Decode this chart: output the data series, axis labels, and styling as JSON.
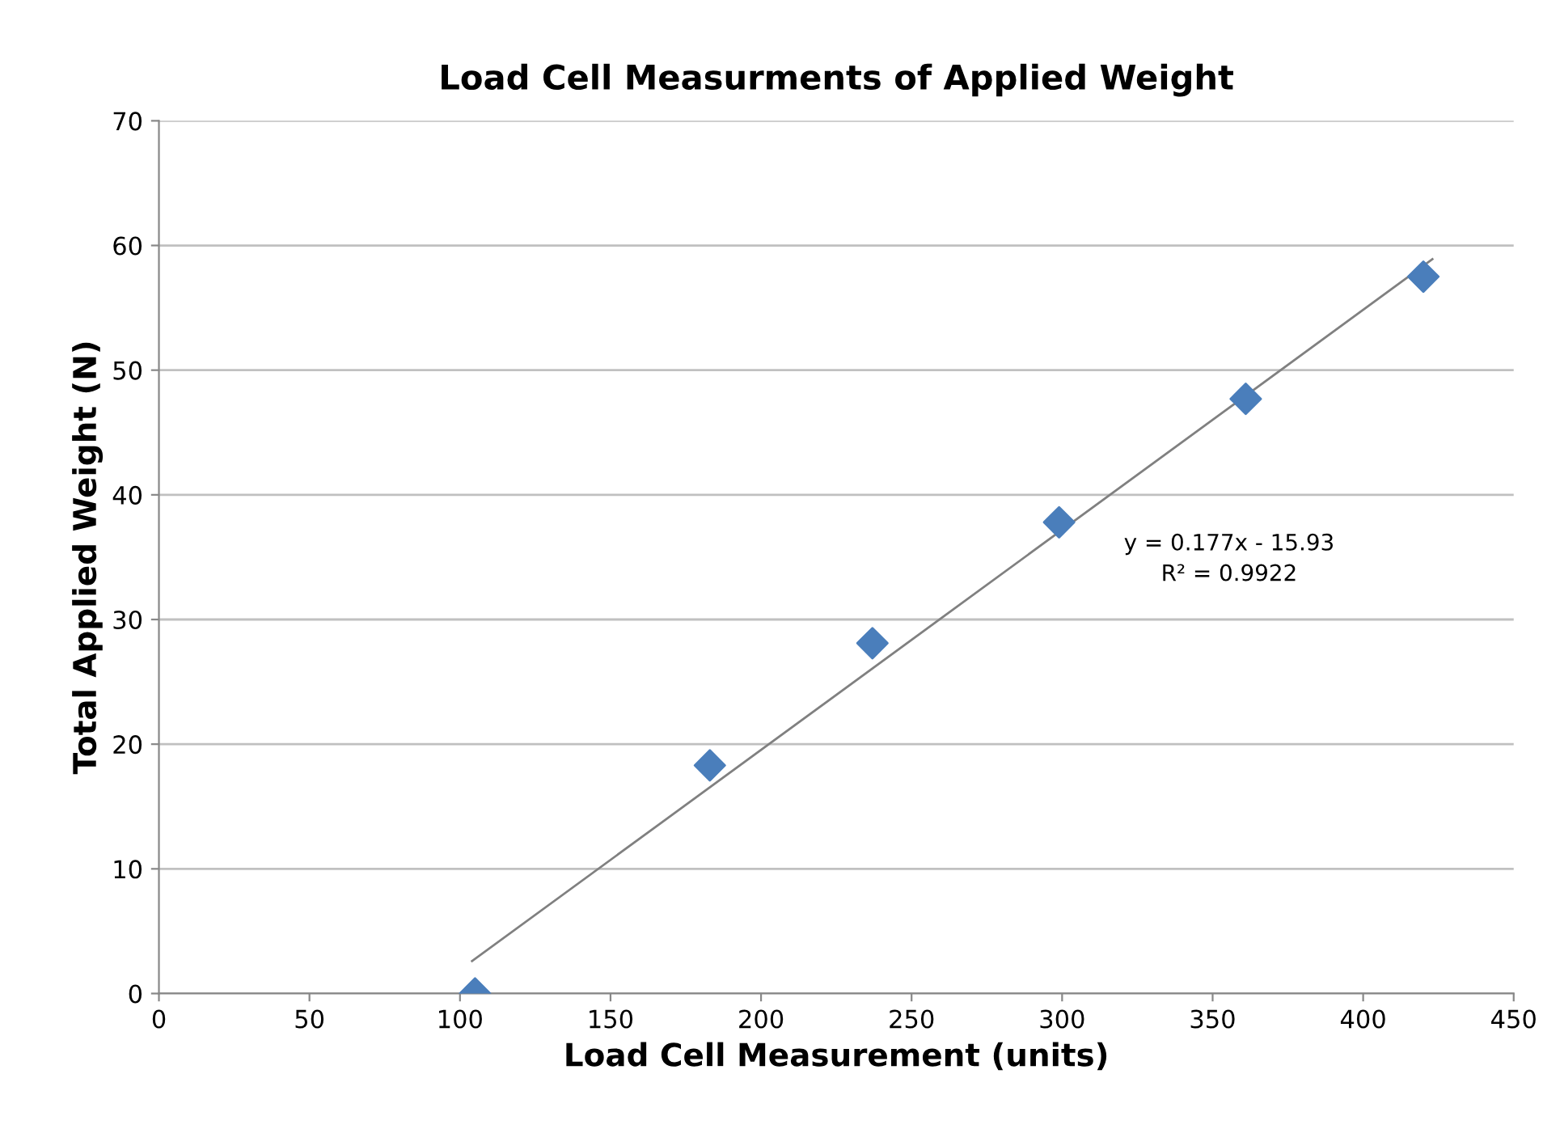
{
  "chart_data": {
    "type": "scatter",
    "title": "Load Cell Measurments of Applied Weight",
    "xlabel": "Load Cell Measurement (units)",
    "ylabel": "Total Applied Weight (N)",
    "series": [
      {
        "color": "#4a7ebb",
        "marker": "diamond",
        "x": [
          105,
          183,
          237,
          299,
          361,
          420
        ],
        "values": [
          0,
          18.3,
          28.1,
          37.8,
          47.7,
          57.5
        ]
      },
      {
        "type": "line",
        "color": "#808080",
        "marker": "none",
        "line_style": "solid",
        "x": [
          104,
          423
        ],
        "values": [
          2.6,
          58.9
        ]
      }
    ],
    "annotations": [
      "y = 0.177x - 15.93",
      "R² = 0.9922"
    ],
    "xlim": [
      0,
      450
    ],
    "xticks": [
      0,
      50,
      100,
      150,
      200,
      250,
      300,
      350,
      400,
      450
    ],
    "ylim": [
      0,
      70
    ],
    "yticks": [
      0,
      10,
      20,
      30,
      40,
      50,
      60,
      70
    ],
    "grid": "y",
    "legend": false
  }
}
